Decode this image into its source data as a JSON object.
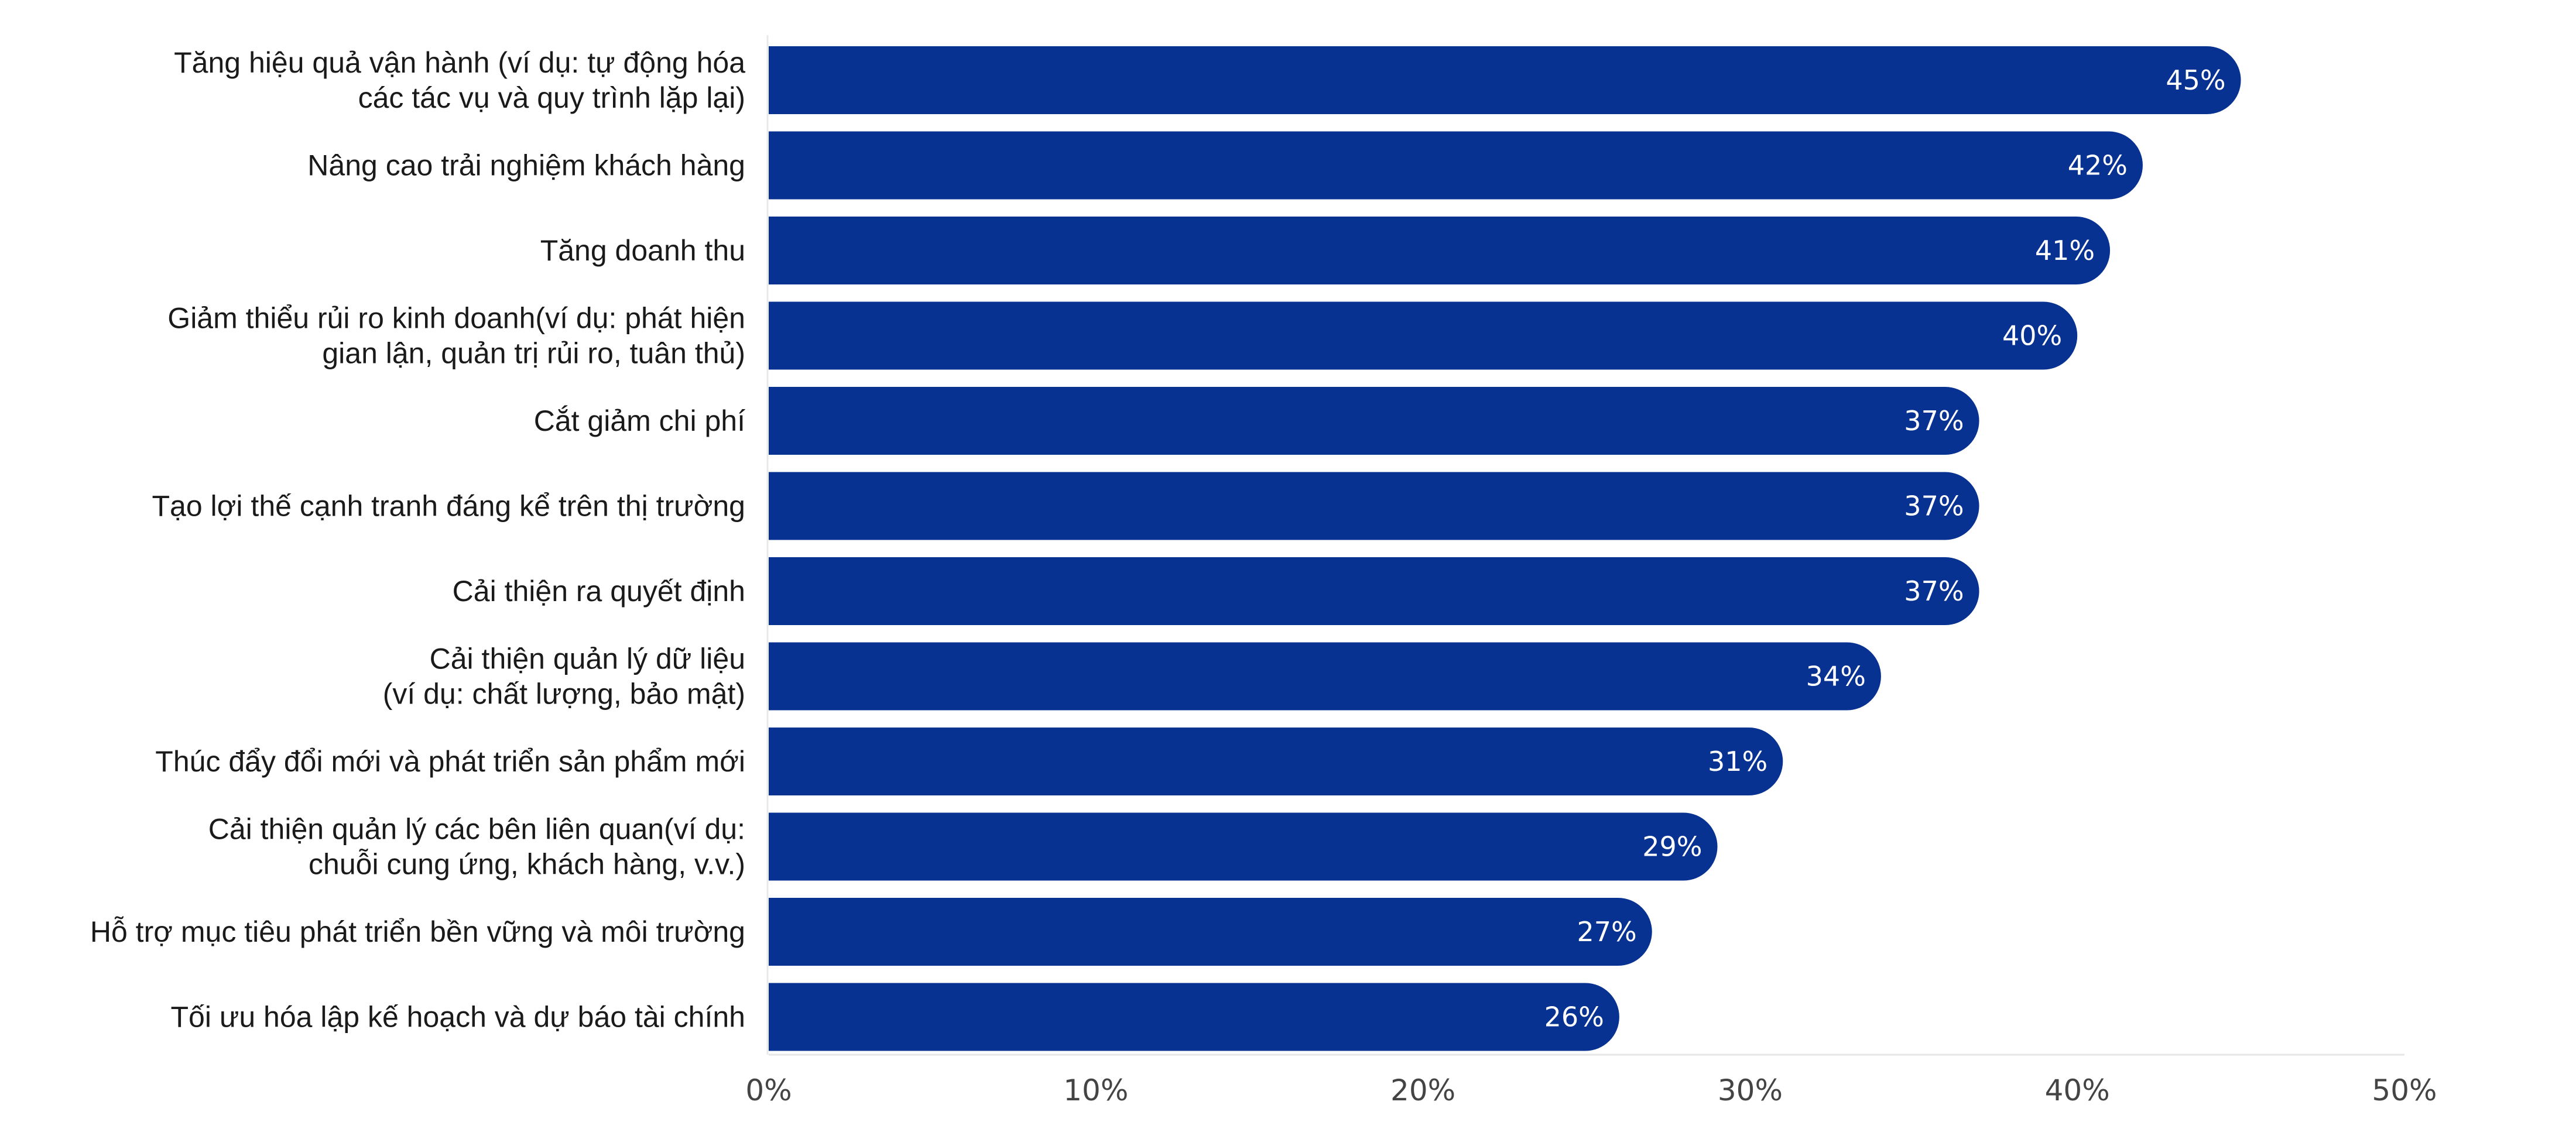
{
  "chart_data": {
    "type": "bar",
    "orientation": "horizontal",
    "title": "",
    "xlabel": "",
    "ylabel": "",
    "xlim": [
      0,
      50
    ],
    "ticks": [
      {
        "value": 0,
        "label": "0%"
      },
      {
        "value": 10,
        "label": "10%"
      },
      {
        "value": 20,
        "label": "20%"
      },
      {
        "value": 30,
        "label": "30%"
      },
      {
        "value": 40,
        "label": "40%"
      },
      {
        "value": 50,
        "label": "50%"
      }
    ],
    "grid": false,
    "legend": "none",
    "bar_color": "#083291",
    "categories": [
      [
        "Tăng hiệu quả vận hành (ví dụ: tự động hóa",
        "các tác vụ và quy trình lặp lại)"
      ],
      [
        "Nâng cao trải nghiệm khách hàng"
      ],
      [
        "Tăng doanh thu"
      ],
      [
        "Giảm thiểu rủi ro kinh doanh(ví dụ: phát hiện",
        "gian lận, quản trị rủi ro, tuân thủ)"
      ],
      [
        "Cắt giảm chi phí"
      ],
      [
        "Tạo lợi thế cạnh tranh đáng kể trên thị trường"
      ],
      [
        "Cải thiện ra quyết định"
      ],
      [
        "Cải thiện quản lý dữ liệu",
        "(ví dụ: chất lượng, bảo mật)"
      ],
      [
        "Thúc đẩy đổi mới và phát triển sản phẩm mới"
      ],
      [
        "Cải thiện quản lý các bên liên quan(ví dụ:",
        "chuỗi cung ứng, khách hàng, v.v.)"
      ],
      [
        "Hỗ trợ mục tiêu phát triển bền vững và môi trường"
      ],
      [
        "Tối ưu hóa lập kế hoạch và dự báo tài chính"
      ]
    ],
    "values": [
      45,
      42,
      41,
      40,
      37,
      37,
      37,
      34,
      31,
      29,
      27,
      26
    ],
    "data_labels": [
      "45%",
      "42%",
      "41%",
      "40%",
      "37%",
      "37%",
      "37%",
      "34%",
      "31%",
      "29%",
      "27%",
      "26%"
    ]
  }
}
